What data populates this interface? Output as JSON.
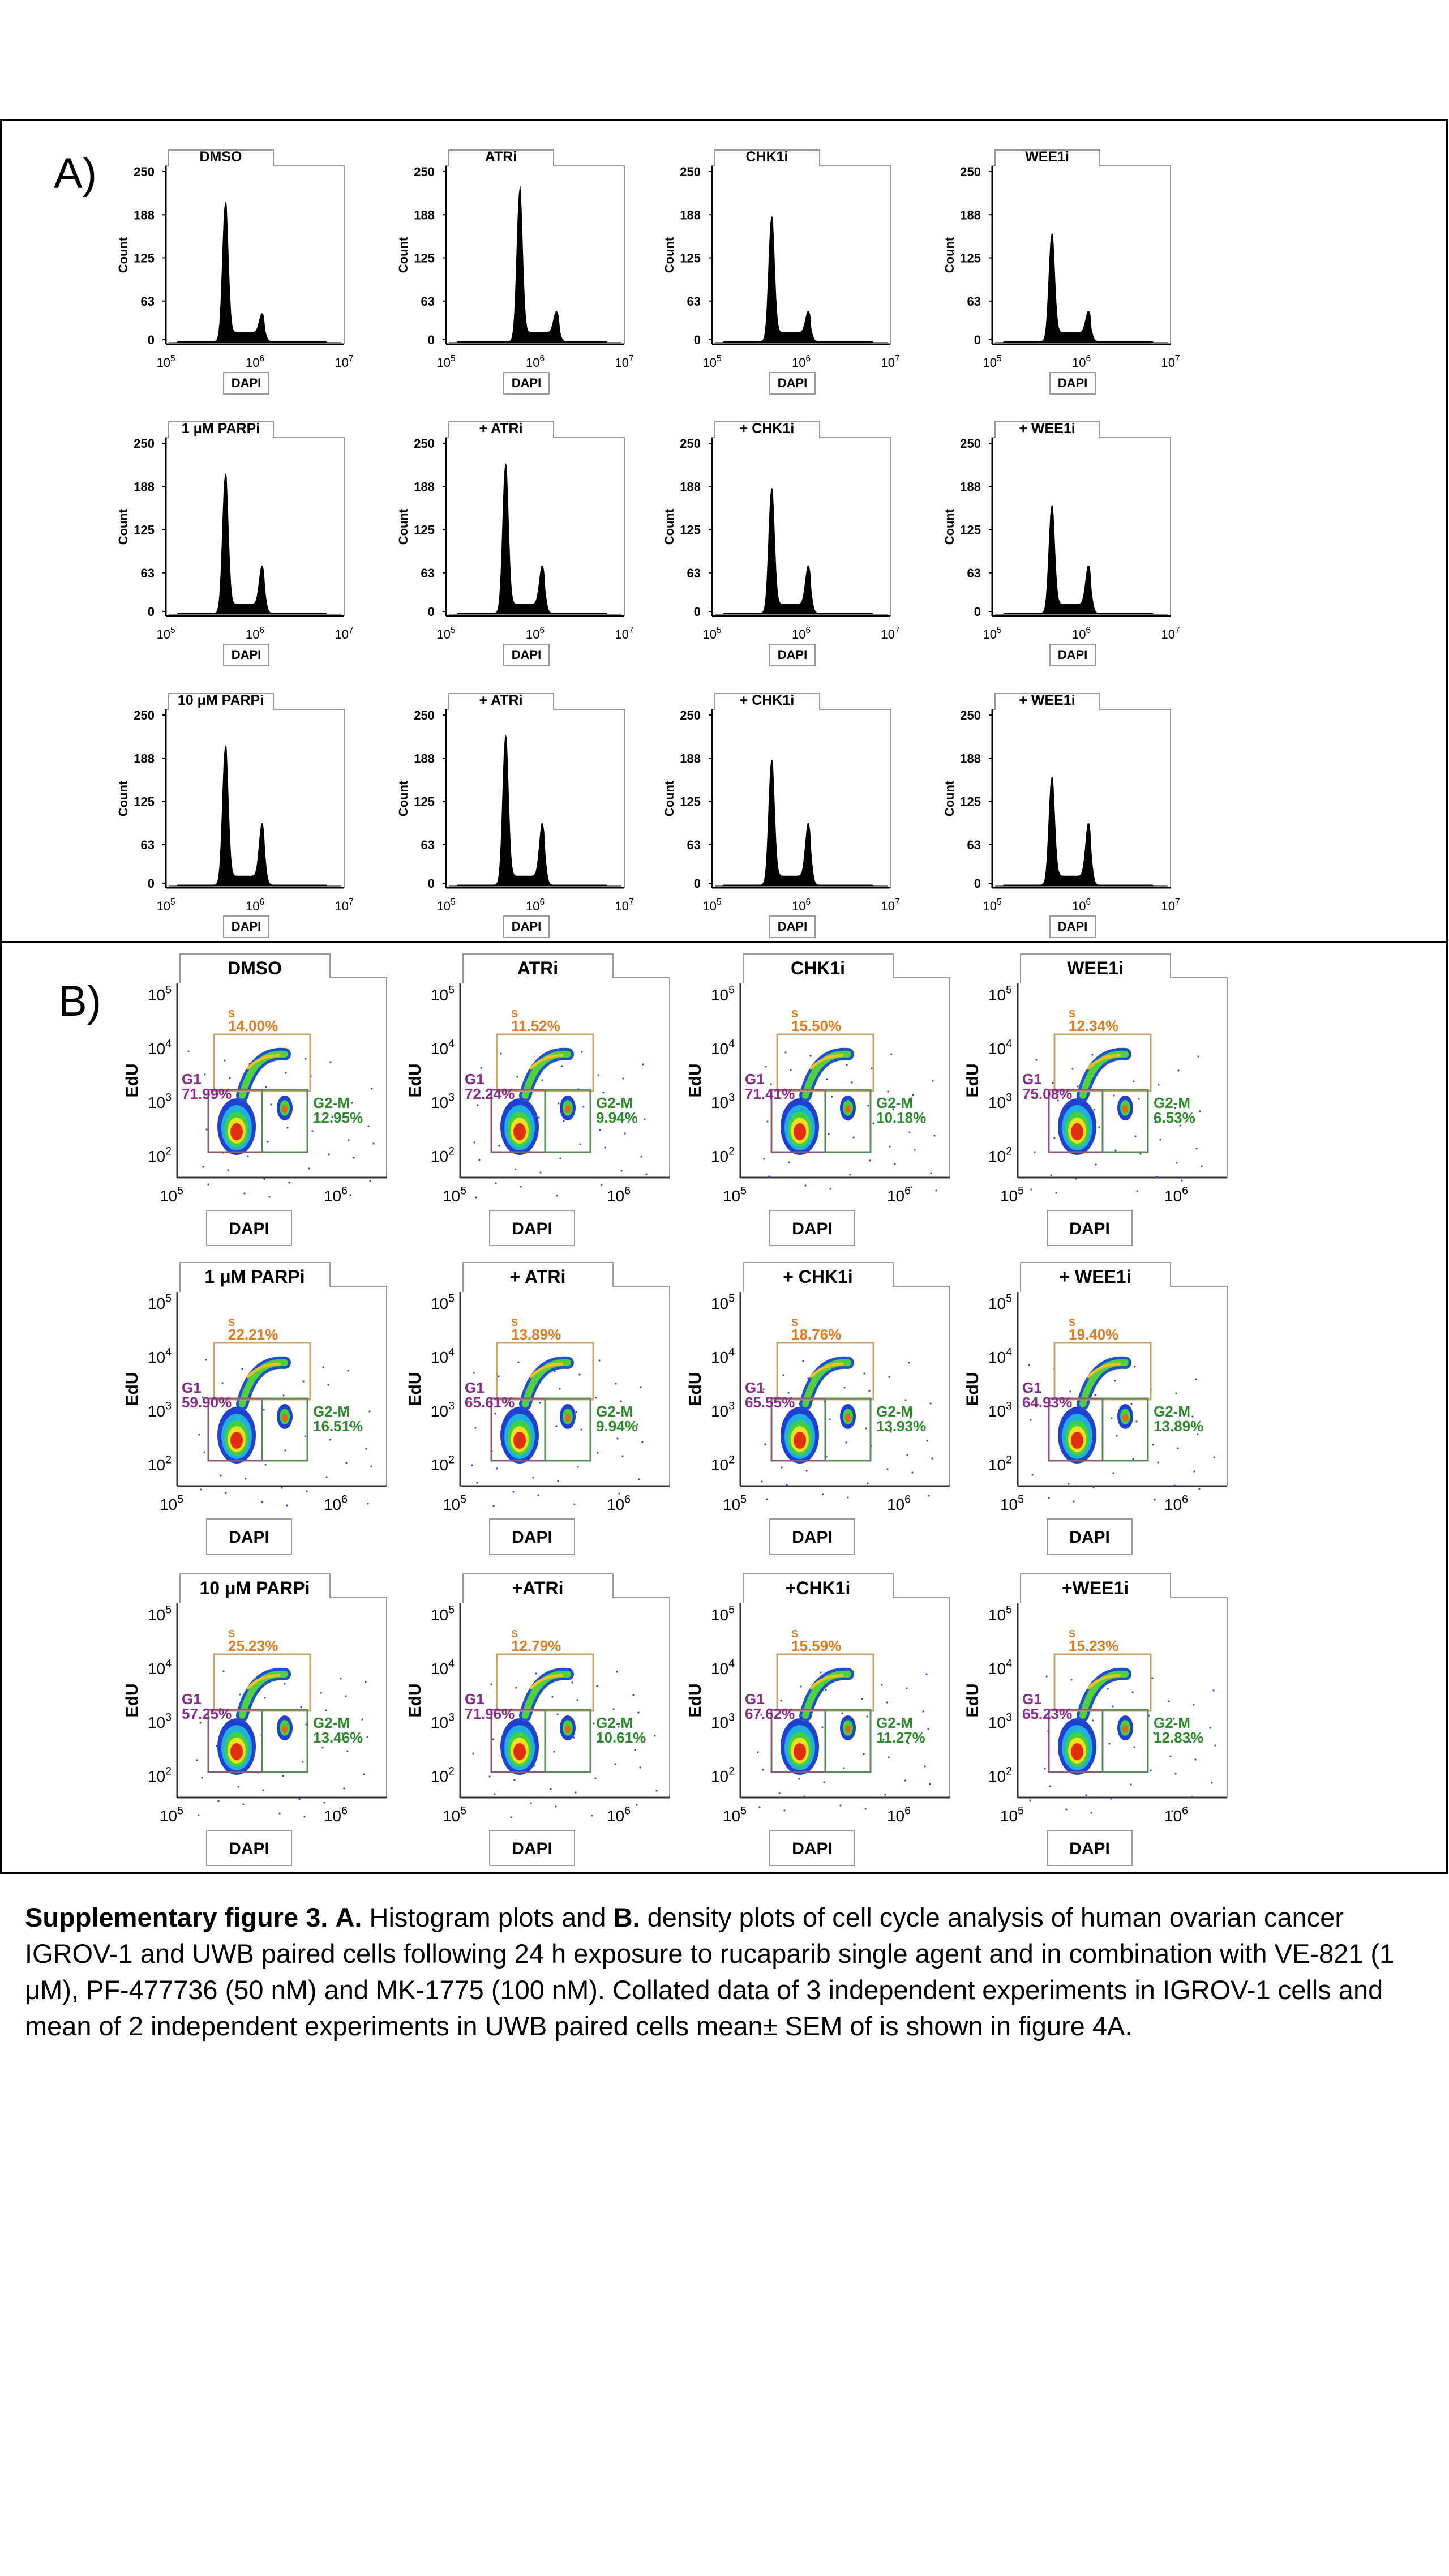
{
  "panel_a": {
    "label": "A)",
    "y_axis_label": "Count",
    "x_axis_label": "DAPI",
    "y_ticks": [
      "250",
      "188",
      "125",
      "63",
      "0"
    ],
    "x_ticks": [
      {
        "base": "10",
        "exp": "5"
      },
      {
        "base": "10",
        "exp": "6"
      },
      {
        "base": "10",
        "exp": "7"
      }
    ],
    "rows": [
      [
        "DMSO",
        "ATRi",
        "CHK1i",
        "WEE1i"
      ],
      [
        "1 μM PARPi",
        "+ ATRi",
        "+ CHK1i",
        "+ WEE1i"
      ],
      [
        "10 μM PARPi",
        "+ ATRi",
        "+ CHK1i",
        "+ WEE1i"
      ]
    ]
  },
  "panel_b": {
    "label": "B)",
    "y_axis_label": "EdU",
    "x_axis_label": "DAPI",
    "y_ticks": [
      {
        "base": "10",
        "exp": "5"
      },
      {
        "base": "10",
        "exp": "4"
      },
      {
        "base": "10",
        "exp": "3"
      },
      {
        "base": "10",
        "exp": "2"
      }
    ],
    "x_ticks": [
      {
        "base": "10",
        "exp": "5"
      },
      {
        "base": "10",
        "exp": "6"
      }
    ],
    "gate_names": {
      "s": "S",
      "g1": "G1",
      "g2m": "G2-M"
    },
    "rows": [
      [
        {
          "title": "DMSO",
          "s": "14.00%",
          "g1": "71.99%",
          "g2m": "12.95%"
        },
        {
          "title": "ATRi",
          "s": "11.52%",
          "g1": "72.24%",
          "g2m": "9.94%"
        },
        {
          "title": "CHK1i",
          "s": "15.50%",
          "g1": "71.41%",
          "g2m": "10.18%"
        },
        {
          "title": "WEE1i",
          "s": "12.34%",
          "g1": "75.08%",
          "g2m": "6.53%"
        }
      ],
      [
        {
          "title": "1 μM PARPi",
          "s": "22.21%",
          "g1": "59.90%",
          "g2m": "16.51%"
        },
        {
          "title": "+ ATRi",
          "s": "13.89%",
          "g1": "65.61%",
          "g2m": "9.94%"
        },
        {
          "title": "+ CHK1i",
          "s": "18.76%",
          "g1": "65.55%",
          "g2m": "13.93%"
        },
        {
          "title": "+ WEE1i",
          "s": "19.40%",
          "g1": "64.93%",
          "g2m": "13.89%"
        }
      ],
      [
        {
          "title": "10 μM PARPi",
          "s": "25.23%",
          "g1": "57.25%",
          "g2m": "13.46%"
        },
        {
          "title": "+ATRi",
          "s": "12.79%",
          "g1": "71.96%",
          "g2m": "10.61%"
        },
        {
          "title": "+CHK1i",
          "s": "15.59%",
          "g1": "67.62%",
          "g2m": "11.27%"
        },
        {
          "title": "+WEE1i",
          "s": "15.23%",
          "g1": "65.23%",
          "g2m": "12.83%"
        }
      ]
    ]
  },
  "caption": {
    "label": "Supplementary figure 3.",
    "part_a_label": "A.",
    "part_a_text": "Histogram plots and",
    "part_b_label": "B.",
    "text": "density plots of cell cycle analysis of human ovarian cancer IGROV-1 and UWB paired cells following 24 h exposure to rucaparib single agent and in combination with VE-821 (1 μM), PF-477736 (50 nM) and MK-1775 (100 nM). Collated data of 3 independent experiments in IGROV-1 cells and mean of 2 independent experiments in UWB paired cells mean± SEM of is shown in figure 4A."
  },
  "colors": {
    "s_gate": "#c8a46a",
    "s_text": "#e07b20",
    "g1_gate": "#8a5a78",
    "g1_text": "#8a2a8a",
    "g2m_gate": "#5a8a5a",
    "g2m_text": "#2a8a2a"
  }
}
